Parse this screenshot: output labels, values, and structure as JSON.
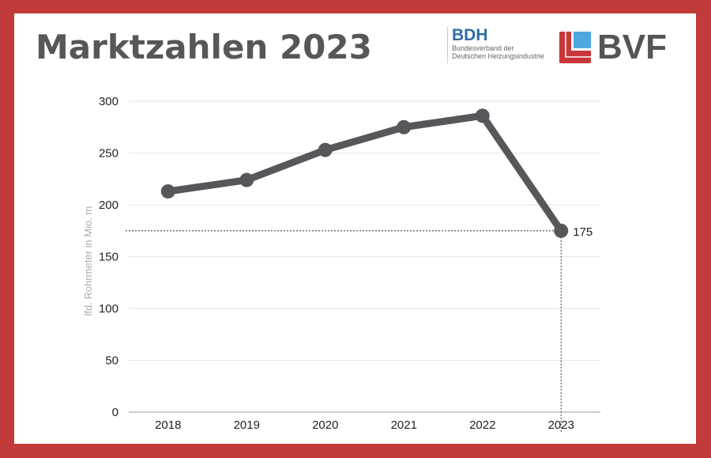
{
  "title": "Marktzahlen 2023",
  "logos": {
    "bdh": {
      "name": "BDH",
      "subtitle_line1": "Bundesverband der",
      "subtitle_line2": "Deutschen Heizungsindustrie"
    },
    "bvf": {
      "name": "BVF"
    }
  },
  "colors": {
    "frame": "#c23b3a",
    "line": "#55575a",
    "bdh": "#2f6ca8",
    "bvf_red": "#c8363a",
    "bvf_blue": "#4ea8e0"
  },
  "chart_data": {
    "type": "line",
    "title": "",
    "xlabel": "",
    "ylabel": "lfd. Rohrmeter in Mio. m",
    "categories": [
      "2018",
      "2019",
      "2020",
      "2021",
      "2022",
      "2023"
    ],
    "series": [
      {
        "values": [
          213,
          224,
          253,
          275,
          286,
          175
        ]
      }
    ],
    "ylim": [
      0,
      300
    ],
    "yticks": [
      0,
      50,
      100,
      150,
      200,
      250,
      300
    ],
    "grid": true,
    "annotation": {
      "category": "2023",
      "value": 175,
      "label": "175",
      "reference_lines": "dotted"
    }
  }
}
